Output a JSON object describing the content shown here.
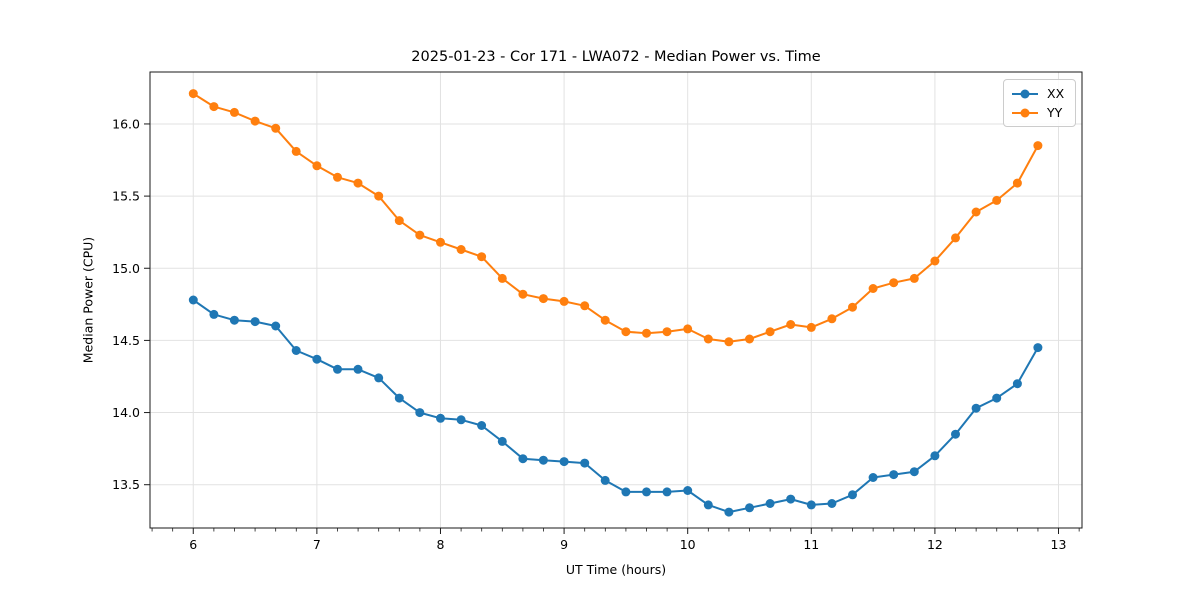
{
  "chart_data": {
    "type": "line",
    "title": "2025-01-23 - Cor 171 - LWA072 - Median Power vs. Time",
    "xlabel": "UT Time (hours)",
    "ylabel": "Median Power (CPU)",
    "x": [
      6.0,
      6.167,
      6.333,
      6.5,
      6.667,
      6.833,
      7.0,
      7.167,
      7.333,
      7.5,
      7.667,
      7.833,
      8.0,
      8.167,
      8.333,
      8.5,
      8.667,
      8.833,
      9.0,
      9.167,
      9.333,
      9.5,
      9.667,
      9.833,
      10.0,
      10.167,
      10.333,
      10.5,
      10.667,
      10.833,
      11.0,
      11.167,
      11.333,
      11.5,
      11.667,
      11.833,
      12.0,
      12.167,
      12.333,
      12.5,
      12.667,
      12.833
    ],
    "series": [
      {
        "name": "XX",
        "color": "#1f77b4",
        "values": [
          14.78,
          14.68,
          14.64,
          14.63,
          14.6,
          14.43,
          14.37,
          14.3,
          14.3,
          14.24,
          14.1,
          14.0,
          13.96,
          13.95,
          13.91,
          13.8,
          13.68,
          13.67,
          13.66,
          13.65,
          13.53,
          13.45,
          13.45,
          13.45,
          13.46,
          13.36,
          13.31,
          13.34,
          13.37,
          13.4,
          13.36,
          13.37,
          13.43,
          13.55,
          13.57,
          13.59,
          13.7,
          13.85,
          14.03,
          14.1,
          14.2,
          14.45
        ]
      },
      {
        "name": "YY",
        "color": "#ff7f0e",
        "values": [
          16.21,
          16.12,
          16.08,
          16.02,
          15.97,
          15.81,
          15.71,
          15.63,
          15.59,
          15.5,
          15.33,
          15.23,
          15.18,
          15.13,
          15.08,
          14.93,
          14.82,
          14.79,
          14.77,
          14.74,
          14.64,
          14.56,
          14.55,
          14.56,
          14.58,
          14.51,
          14.49,
          14.51,
          14.56,
          14.61,
          14.59,
          14.65,
          14.73,
          14.86,
          14.9,
          14.93,
          15.05,
          15.21,
          15.39,
          15.47,
          15.59,
          15.85
        ]
      }
    ],
    "xlim": [
      5.65,
      13.19
    ],
    "ylim": [
      13.2,
      16.36
    ],
    "xticks": [
      6,
      7,
      8,
      9,
      10,
      11,
      12,
      13
    ],
    "yticks": [
      13.5,
      14.0,
      14.5,
      15.0,
      15.5,
      16.0
    ],
    "x_minor_step": 0.16667,
    "grid": true,
    "legend_position": "upper right"
  },
  "colors": {
    "grid": "#e2e2e2",
    "spine": "#1a1a1a",
    "tick": "#1a1a1a"
  }
}
